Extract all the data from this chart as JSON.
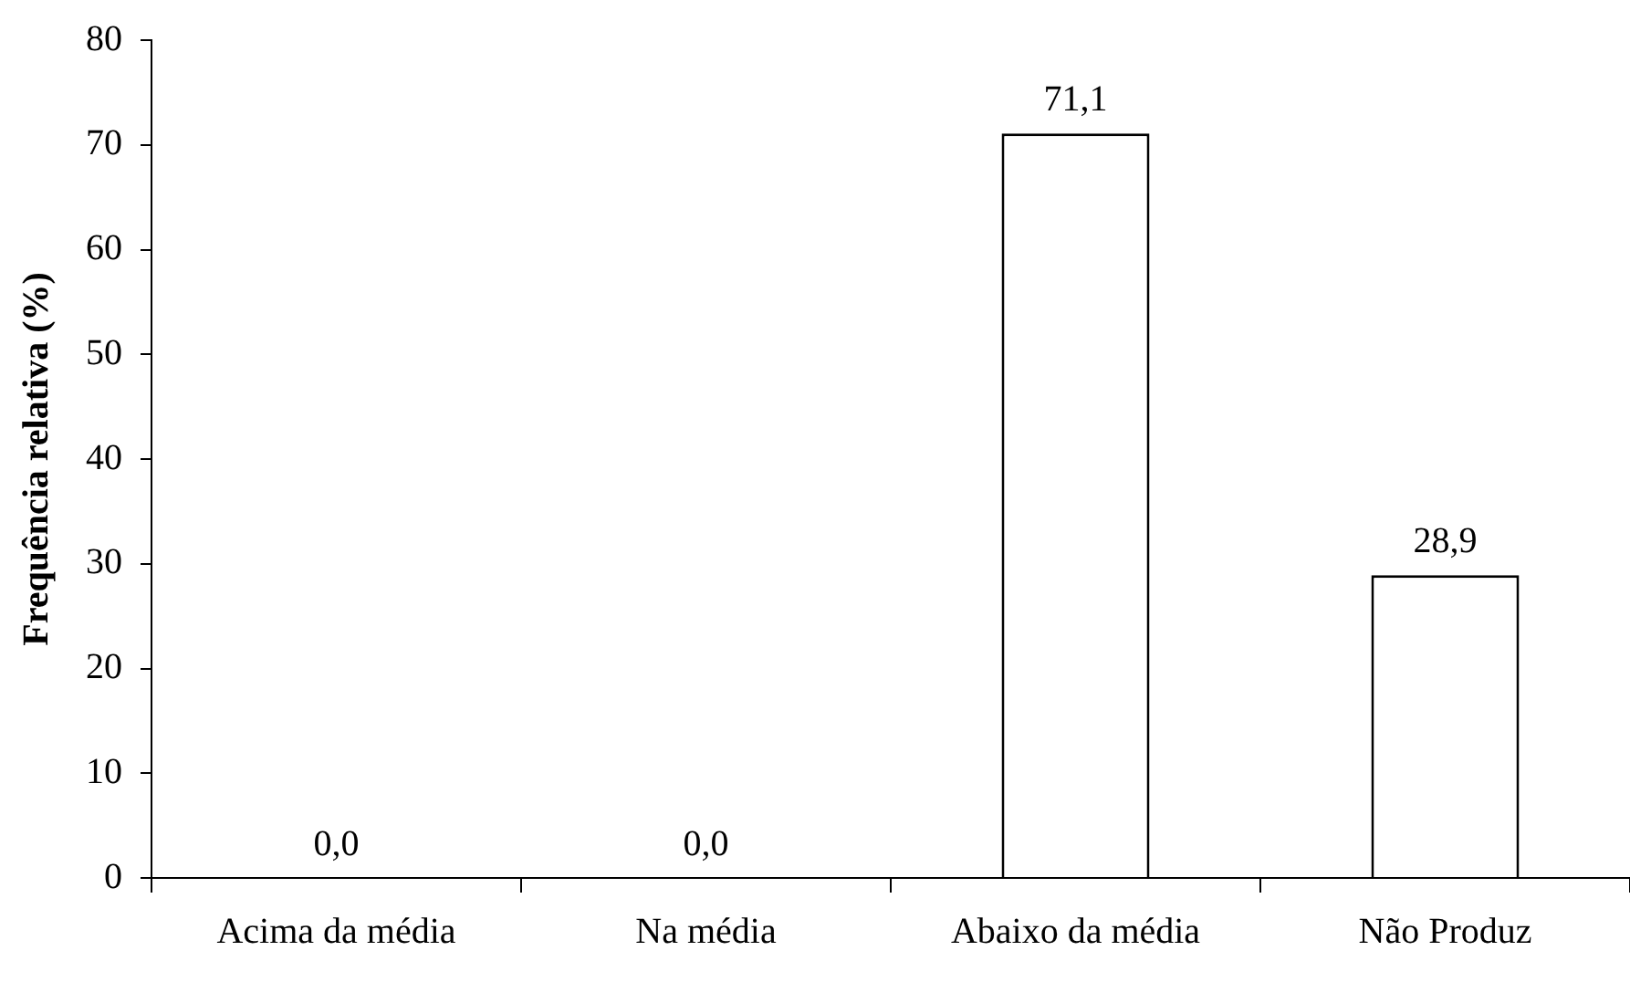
{
  "chart_data": {
    "type": "bar",
    "ylabel": "Frequência relativa (%)",
    "categories": [
      "Acima da média",
      "Na média",
      "Abaixo da média",
      "Não Produz"
    ],
    "values": [
      0.0,
      0.0,
      71.1,
      28.9
    ],
    "color": "#ffffff",
    "value_labels": [
      "0,0",
      "0,0",
      "71,1",
      "28,9"
    ],
    "ylim": [
      0,
      80
    ],
    "yticks": [
      0,
      10,
      20,
      30,
      40,
      50,
      60,
      70,
      80
    ],
    "grid": false,
    "legend": false
  }
}
